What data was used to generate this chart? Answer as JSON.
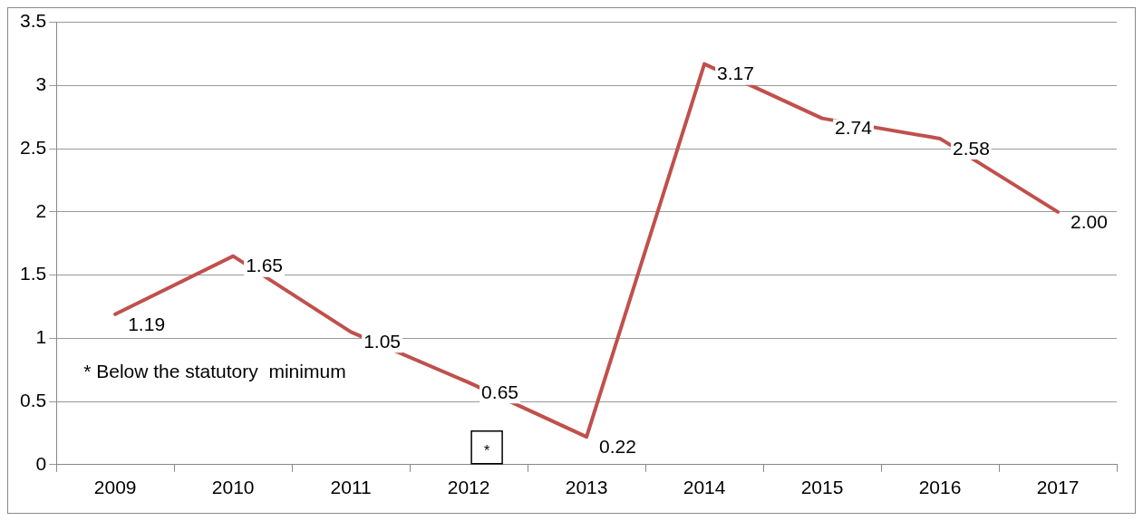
{
  "chart_data": {
    "type": "line",
    "categories": [
      "2009",
      "2010",
      "2011",
      "2012",
      "2013",
      "2014",
      "2015",
      "2016",
      "2017"
    ],
    "series": [
      {
        "color": "#c0504d",
        "values": [
          1.19,
          1.65,
          1.05,
          0.65,
          0.22,
          3.17,
          2.74,
          2.58,
          2.0
        ],
        "value_labels": [
          "1.19",
          "1.65",
          "1.05",
          "0.65",
          "0.22",
          "3.17",
          "2.74",
          "2.58",
          "2.00"
        ]
      }
    ],
    "ylim": [
      0,
      3.5
    ],
    "yticks": [
      0,
      0.5,
      1,
      1.5,
      2,
      2.5,
      3,
      3.5
    ],
    "grid": "y",
    "legend": false,
    "marker": "none",
    "line_style": "solid",
    "annotations": [
      "* Below the statutory  minimum",
      "*"
    ]
  }
}
